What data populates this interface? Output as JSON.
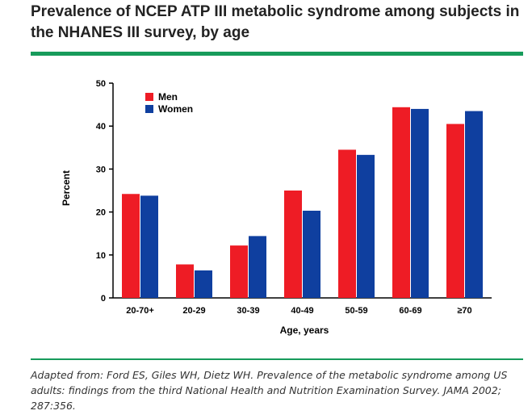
{
  "header": {
    "title": "Prevalence of NCEP ATP III metabolic syndrome among subjects in the NHANES III survey, by age"
  },
  "colors": {
    "accent_rule": "#179b5b",
    "men": "#ee1c25",
    "women": "#0f3f9f"
  },
  "chart_data": {
    "type": "bar",
    "title": "",
    "xlabel": "Age, years",
    "ylabel": "Percent",
    "ylim": [
      0,
      50
    ],
    "yticks": [
      0,
      10,
      20,
      30,
      40,
      50
    ],
    "categories": [
      "20-70+",
      "20-29",
      "30-39",
      "40-49",
      "50-59",
      "60-69",
      "≥70"
    ],
    "series": [
      {
        "name": "Men",
        "color": "#ee1c25",
        "values": [
          24.2,
          7.8,
          12.2,
          25.0,
          34.5,
          44.4,
          40.5
        ]
      },
      {
        "name": "Women",
        "color": "#0f3f9f",
        "values": [
          23.8,
          6.4,
          14.4,
          20.3,
          33.3,
          44.0,
          43.5
        ]
      }
    ],
    "legend": {
      "position": "top-left"
    },
    "grid": false
  },
  "footer": {
    "caption": "Adapted from: Ford ES, Giles WH, Dietz WH. Prevalence of the metabolic syndrome among US adults: findings from the third National Health and Nutrition Examination Survey. JAMA 2002; 287:356."
  }
}
